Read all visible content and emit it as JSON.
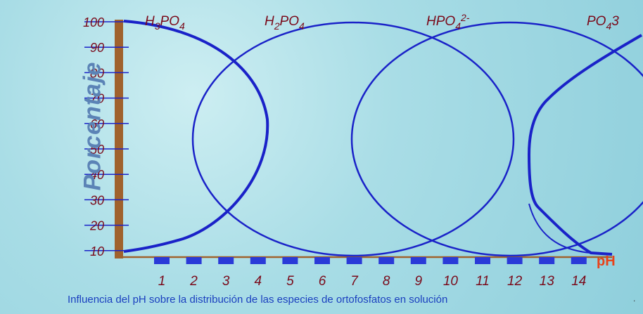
{
  "axes": {
    "y_title": "Porcentaje",
    "x_unit": "pH",
    "y_ticks": [
      "100",
      "90",
      "80",
      "70",
      "60",
      "50",
      "40",
      "30",
      "20",
      "10"
    ],
    "x_ticks": [
      "1",
      "2",
      "3",
      "4",
      "5",
      "6",
      "7",
      "8",
      "9",
      "10",
      "11",
      "12",
      "13",
      "14"
    ]
  },
  "species": {
    "s1": {
      "prefix": "H",
      "sub1": "3",
      "mid": "PO",
      "sub2": "4",
      "sup": ""
    },
    "s2": {
      "prefix": "H",
      "sub1": "2",
      "mid": "PO",
      "sub2": "4",
      "sup": ""
    },
    "s3": {
      "prefix": "",
      "sub1": "",
      "mid": "HPO",
      "sub2": "4",
      "sup": "2-"
    },
    "s4": {
      "prefix": "",
      "sub1": "",
      "mid": "PO",
      "sub2": "4",
      "sup": "3"
    }
  },
  "caption": "Influencia del pH sobre la distribución de las especies de ortofosfatos en solución",
  "dot": ".",
  "colors": {
    "curve": "#1a22c8",
    "axis": "#a0622d",
    "tick_label": "#7a0a1a",
    "ph": "#e8421a",
    "caption": "#1a3fbf",
    "ylabel": "#5b83b6"
  }
}
